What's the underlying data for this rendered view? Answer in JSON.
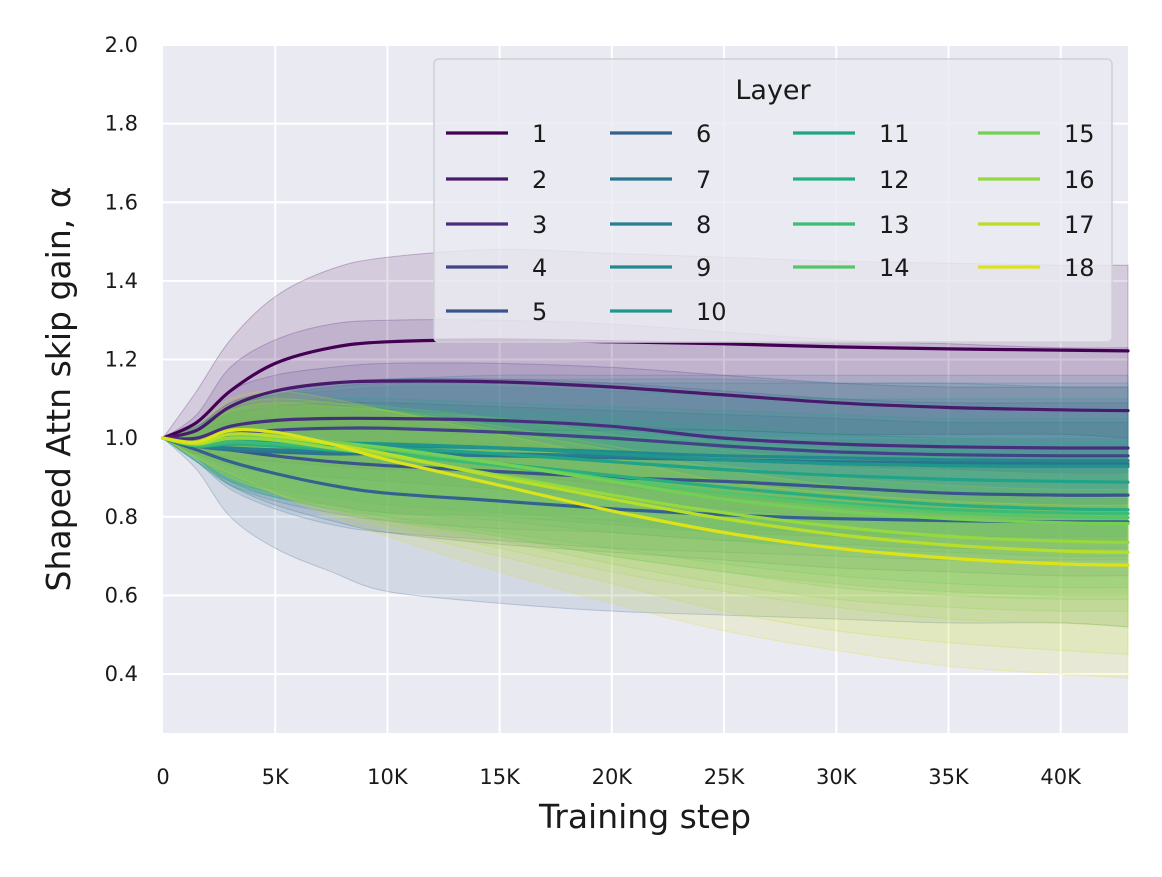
{
  "chart_data": {
    "type": "line",
    "title": "",
    "xlabel": "Training step",
    "ylabel": "Shaped Attn skip gain, α",
    "xlim": [
      0,
      43000
    ],
    "ylim": [
      0.25,
      2.0
    ],
    "xticks": [
      0,
      5000,
      10000,
      15000,
      20000,
      25000,
      30000,
      35000,
      40000
    ],
    "xtick_labels": [
      "0",
      "5K",
      "10K",
      "15K",
      "20K",
      "25K",
      "30K",
      "35K",
      "40K"
    ],
    "yticks": [
      0.4,
      0.6,
      0.8,
      1.0,
      1.2,
      1.4,
      1.6,
      1.8,
      2.0
    ],
    "ytick_labels": [
      "0.4",
      "0.6",
      "0.8",
      "1.0",
      "1.2",
      "1.4",
      "1.6",
      "1.8",
      "2.0"
    ],
    "grid": true,
    "legend": {
      "title": "Layer",
      "position": "top-right",
      "columns": 4
    },
    "x": [
      0,
      1500,
      3000,
      5000,
      7500,
      10000,
      15000,
      20000,
      25000,
      30000,
      35000,
      40000,
      43000
    ],
    "series": [
      {
        "name": "1",
        "color": "#440154",
        "values": [
          1.0,
          1.04,
          1.12,
          1.19,
          1.23,
          1.245,
          1.25,
          1.245,
          1.24,
          1.232,
          1.227,
          1.224,
          1.222
        ],
        "band_upper": [
          1.0,
          1.12,
          1.25,
          1.36,
          1.43,
          1.46,
          1.48,
          1.47,
          1.46,
          1.45,
          1.445,
          1.44,
          1.44
        ],
        "band_lower": [
          1.0,
          0.96,
          0.99,
          1.02,
          1.03,
          1.03,
          1.02,
          1.02,
          1.02,
          1.01,
          1.01,
          1.01,
          1.0
        ]
      },
      {
        "name": "2",
        "color": "#481a6c",
        "values": [
          1.0,
          1.02,
          1.08,
          1.12,
          1.14,
          1.145,
          1.143,
          1.13,
          1.11,
          1.09,
          1.078,
          1.072,
          1.07
        ],
        "band_upper": [
          1.0,
          1.06,
          1.18,
          1.25,
          1.29,
          1.3,
          1.3,
          1.29,
          1.27,
          1.25,
          1.24,
          1.23,
          1.23
        ],
        "band_lower": [
          1.0,
          0.98,
          0.98,
          0.99,
          0.99,
          0.99,
          0.98,
          0.97,
          0.95,
          0.93,
          0.92,
          0.91,
          0.91
        ]
      },
      {
        "name": "3",
        "color": "#472f7d",
        "values": [
          1.0,
          1.0,
          1.03,
          1.045,
          1.05,
          1.05,
          1.045,
          1.03,
          1.0,
          0.985,
          0.978,
          0.975,
          0.975
        ],
        "band_upper": [
          1.0,
          1.04,
          1.12,
          1.16,
          1.18,
          1.19,
          1.19,
          1.18,
          1.16,
          1.14,
          1.13,
          1.13,
          1.13
        ],
        "band_lower": [
          1.0,
          0.97,
          0.95,
          0.94,
          0.93,
          0.92,
          0.91,
          0.88,
          0.85,
          0.83,
          0.82,
          0.82,
          0.82
        ]
      },
      {
        "name": "4",
        "color": "#414487",
        "values": [
          1.0,
          0.99,
          1.01,
          1.02,
          1.025,
          1.025,
          1.015,
          1.0,
          0.98,
          0.965,
          0.958,
          0.955,
          0.955
        ],
        "band_upper": [
          1.0,
          1.03,
          1.09,
          1.12,
          1.14,
          1.15,
          1.15,
          1.14,
          1.12,
          1.1,
          1.09,
          1.09,
          1.09
        ],
        "band_lower": [
          1.0,
          0.96,
          0.93,
          0.91,
          0.9,
          0.89,
          0.87,
          0.85,
          0.82,
          0.8,
          0.79,
          0.79,
          0.79
        ]
      },
      {
        "name": "5",
        "color": "#3a548c",
        "values": [
          1.0,
          0.98,
          0.97,
          0.955,
          0.94,
          0.93,
          0.915,
          0.9,
          0.89,
          0.875,
          0.86,
          0.855,
          0.855
        ],
        "band_upper": [
          1.0,
          1.02,
          1.06,
          1.08,
          1.09,
          1.09,
          1.08,
          1.07,
          1.06,
          1.05,
          1.04,
          1.04,
          1.04
        ],
        "band_lower": [
          1.0,
          0.95,
          0.88,
          0.83,
          0.79,
          0.76,
          0.73,
          0.71,
          0.69,
          0.67,
          0.66,
          0.65,
          0.65
        ]
      },
      {
        "name": "6",
        "color": "#34618d",
        "values": [
          1.0,
          0.97,
          0.94,
          0.91,
          0.88,
          0.86,
          0.84,
          0.82,
          0.805,
          0.795,
          0.79,
          0.787,
          0.787
        ],
        "band_upper": [
          1.0,
          1.02,
          1.04,
          1.05,
          1.05,
          1.05,
          1.04,
          1.03,
          1.02,
          1.01,
          1.0,
          1.0,
          1.0
        ],
        "band_lower": [
          1.0,
          0.92,
          0.8,
          0.72,
          0.66,
          0.61,
          0.58,
          0.56,
          0.55,
          0.54,
          0.53,
          0.53,
          0.52
        ]
      },
      {
        "name": "7",
        "color": "#2b748e",
        "values": [
          1.0,
          0.98,
          0.97,
          0.965,
          0.96,
          0.96,
          0.955,
          0.95,
          0.945,
          0.94,
          0.937,
          0.935,
          0.935
        ],
        "band_upper": [
          1.0,
          1.03,
          1.08,
          1.12,
          1.14,
          1.15,
          1.16,
          1.16,
          1.16,
          1.16,
          1.16,
          1.16,
          1.16
        ],
        "band_lower": [
          1.0,
          0.94,
          0.87,
          0.82,
          0.78,
          0.76,
          0.74,
          0.72,
          0.71,
          0.7,
          0.69,
          0.69,
          0.69
        ]
      },
      {
        "name": "8",
        "color": "#287d8e",
        "values": [
          1.0,
          0.98,
          0.975,
          0.97,
          0.968,
          0.965,
          0.96,
          0.955,
          0.945,
          0.935,
          0.93,
          0.928,
          0.928
        ],
        "band_upper": [
          1.0,
          1.03,
          1.08,
          1.11,
          1.13,
          1.14,
          1.14,
          1.14,
          1.14,
          1.14,
          1.14,
          1.13,
          1.13
        ],
        "band_lower": [
          1.0,
          0.94,
          0.88,
          0.84,
          0.81,
          0.79,
          0.77,
          0.76,
          0.74,
          0.73,
          0.72,
          0.72,
          0.72
        ]
      },
      {
        "name": "9",
        "color": "#23898e",
        "values": [
          1.0,
          0.985,
          0.985,
          0.985,
          0.982,
          0.98,
          0.975,
          0.965,
          0.955,
          0.95,
          0.945,
          0.943,
          0.943
        ],
        "band_upper": [
          1.0,
          1.03,
          1.09,
          1.12,
          1.14,
          1.15,
          1.15,
          1.15,
          1.15,
          1.14,
          1.14,
          1.14,
          1.14
        ],
        "band_lower": [
          1.0,
          0.95,
          0.89,
          0.85,
          0.83,
          0.81,
          0.8,
          0.78,
          0.76,
          0.75,
          0.75,
          0.74,
          0.74
        ]
      },
      {
        "name": "10",
        "color": "#1f968b",
        "values": [
          1.0,
          0.985,
          0.99,
          0.99,
          0.988,
          0.985,
          0.975,
          0.96,
          0.945,
          0.935,
          0.93,
          0.928,
          0.928
        ],
        "band_upper": [
          1.0,
          1.03,
          1.08,
          1.11,
          1.12,
          1.13,
          1.13,
          1.12,
          1.11,
          1.1,
          1.1,
          1.1,
          1.1
        ],
        "band_lower": [
          1.0,
          0.95,
          0.9,
          0.87,
          0.85,
          0.83,
          0.81,
          0.79,
          0.77,
          0.76,
          0.75,
          0.75,
          0.75
        ]
      },
      {
        "name": "11",
        "color": "#20a386",
        "values": [
          1.0,
          0.98,
          0.985,
          0.985,
          0.98,
          0.975,
          0.96,
          0.94,
          0.92,
          0.905,
          0.895,
          0.89,
          0.888
        ],
        "band_upper": [
          1.0,
          1.02,
          1.07,
          1.09,
          1.1,
          1.1,
          1.09,
          1.08,
          1.07,
          1.06,
          1.05,
          1.05,
          1.05
        ],
        "band_lower": [
          1.0,
          0.94,
          0.89,
          0.86,
          0.83,
          0.81,
          0.79,
          0.76,
          0.74,
          0.72,
          0.71,
          0.7,
          0.7
        ]
      },
      {
        "name": "12",
        "color": "#29af7f",
        "values": [
          1.0,
          0.98,
          0.985,
          0.98,
          0.97,
          0.96,
          0.935,
          0.905,
          0.875,
          0.85,
          0.83,
          0.82,
          0.818
        ],
        "band_upper": [
          1.0,
          1.02,
          1.06,
          1.07,
          1.08,
          1.08,
          1.07,
          1.05,
          1.03,
          1.01,
          1.0,
          0.99,
          0.99
        ],
        "band_lower": [
          1.0,
          0.94,
          0.88,
          0.85,
          0.82,
          0.8,
          0.76,
          0.72,
          0.68,
          0.65,
          0.63,
          0.62,
          0.62
        ]
      },
      {
        "name": "13",
        "color": "#3bbb75",
        "values": [
          1.0,
          0.98,
          0.99,
          0.985,
          0.975,
          0.96,
          0.93,
          0.895,
          0.86,
          0.835,
          0.818,
          0.81,
          0.808
        ],
        "band_upper": [
          1.0,
          1.02,
          1.06,
          1.07,
          1.07,
          1.07,
          1.05,
          1.03,
          1.0,
          0.98,
          0.97,
          0.96,
          0.96
        ],
        "band_lower": [
          1.0,
          0.94,
          0.89,
          0.85,
          0.82,
          0.79,
          0.75,
          0.7,
          0.66,
          0.63,
          0.61,
          0.6,
          0.6
        ]
      },
      {
        "name": "14",
        "color": "#55c667",
        "values": [
          1.0,
          0.985,
          1.0,
          0.995,
          0.985,
          0.97,
          0.935,
          0.895,
          0.86,
          0.83,
          0.81,
          0.8,
          0.798
        ],
        "band_upper": [
          1.0,
          1.02,
          1.07,
          1.08,
          1.08,
          1.07,
          1.05,
          1.02,
          0.99,
          0.97,
          0.95,
          0.94,
          0.94
        ],
        "band_lower": [
          1.0,
          0.95,
          0.9,
          0.86,
          0.83,
          0.8,
          0.75,
          0.7,
          0.66,
          0.62,
          0.6,
          0.59,
          0.59
        ]
      },
      {
        "name": "15",
        "color": "#73d055",
        "values": [
          1.0,
          0.985,
          1.0,
          1.0,
          0.99,
          0.975,
          0.935,
          0.89,
          0.845,
          0.815,
          0.795,
          0.785,
          0.783
        ],
        "band_upper": [
          1.0,
          1.02,
          1.07,
          1.09,
          1.09,
          1.08,
          1.05,
          1.01,
          0.97,
          0.94,
          0.92,
          0.91,
          0.91
        ],
        "band_lower": [
          1.0,
          0.95,
          0.9,
          0.86,
          0.82,
          0.79,
          0.74,
          0.68,
          0.63,
          0.59,
          0.57,
          0.56,
          0.56
        ]
      },
      {
        "name": "16",
        "color": "#95d840",
        "values": [
          1.0,
          0.985,
          1.0,
          0.995,
          0.975,
          0.955,
          0.905,
          0.855,
          0.81,
          0.775,
          0.75,
          0.738,
          0.735
        ],
        "band_upper": [
          1.0,
          1.02,
          1.07,
          1.09,
          1.08,
          1.07,
          1.03,
          0.98,
          0.93,
          0.9,
          0.88,
          0.87,
          0.87
        ],
        "band_lower": [
          1.0,
          0.95,
          0.9,
          0.86,
          0.82,
          0.78,
          0.72,
          0.66,
          0.61,
          0.57,
          0.54,
          0.53,
          0.52
        ]
      },
      {
        "name": "17",
        "color": "#b8de29",
        "values": [
          1.0,
          0.985,
          1.01,
          1.005,
          0.985,
          0.96,
          0.9,
          0.845,
          0.795,
          0.755,
          0.728,
          0.713,
          0.71
        ],
        "band_upper": [
          1.0,
          1.02,
          1.08,
          1.1,
          1.09,
          1.07,
          1.02,
          0.97,
          0.92,
          0.88,
          0.86,
          0.85,
          0.85
        ],
        "band_lower": [
          1.0,
          0.95,
          0.9,
          0.86,
          0.81,
          0.77,
          0.7,
          0.63,
          0.56,
          0.51,
          0.48,
          0.46,
          0.45
        ]
      },
      {
        "name": "18",
        "color": "#dce319",
        "values": [
          1.0,
          0.99,
          1.02,
          1.015,
          0.985,
          0.945,
          0.88,
          0.815,
          0.76,
          0.72,
          0.695,
          0.68,
          0.677
        ],
        "band_upper": [
          1.0,
          1.03,
          1.1,
          1.12,
          1.1,
          1.07,
          1.01,
          0.95,
          0.89,
          0.86,
          0.84,
          0.83,
          0.83
        ],
        "band_lower": [
          1.0,
          0.95,
          0.91,
          0.86,
          0.8,
          0.75,
          0.66,
          0.58,
          0.51,
          0.46,
          0.42,
          0.4,
          0.39
        ]
      }
    ]
  }
}
